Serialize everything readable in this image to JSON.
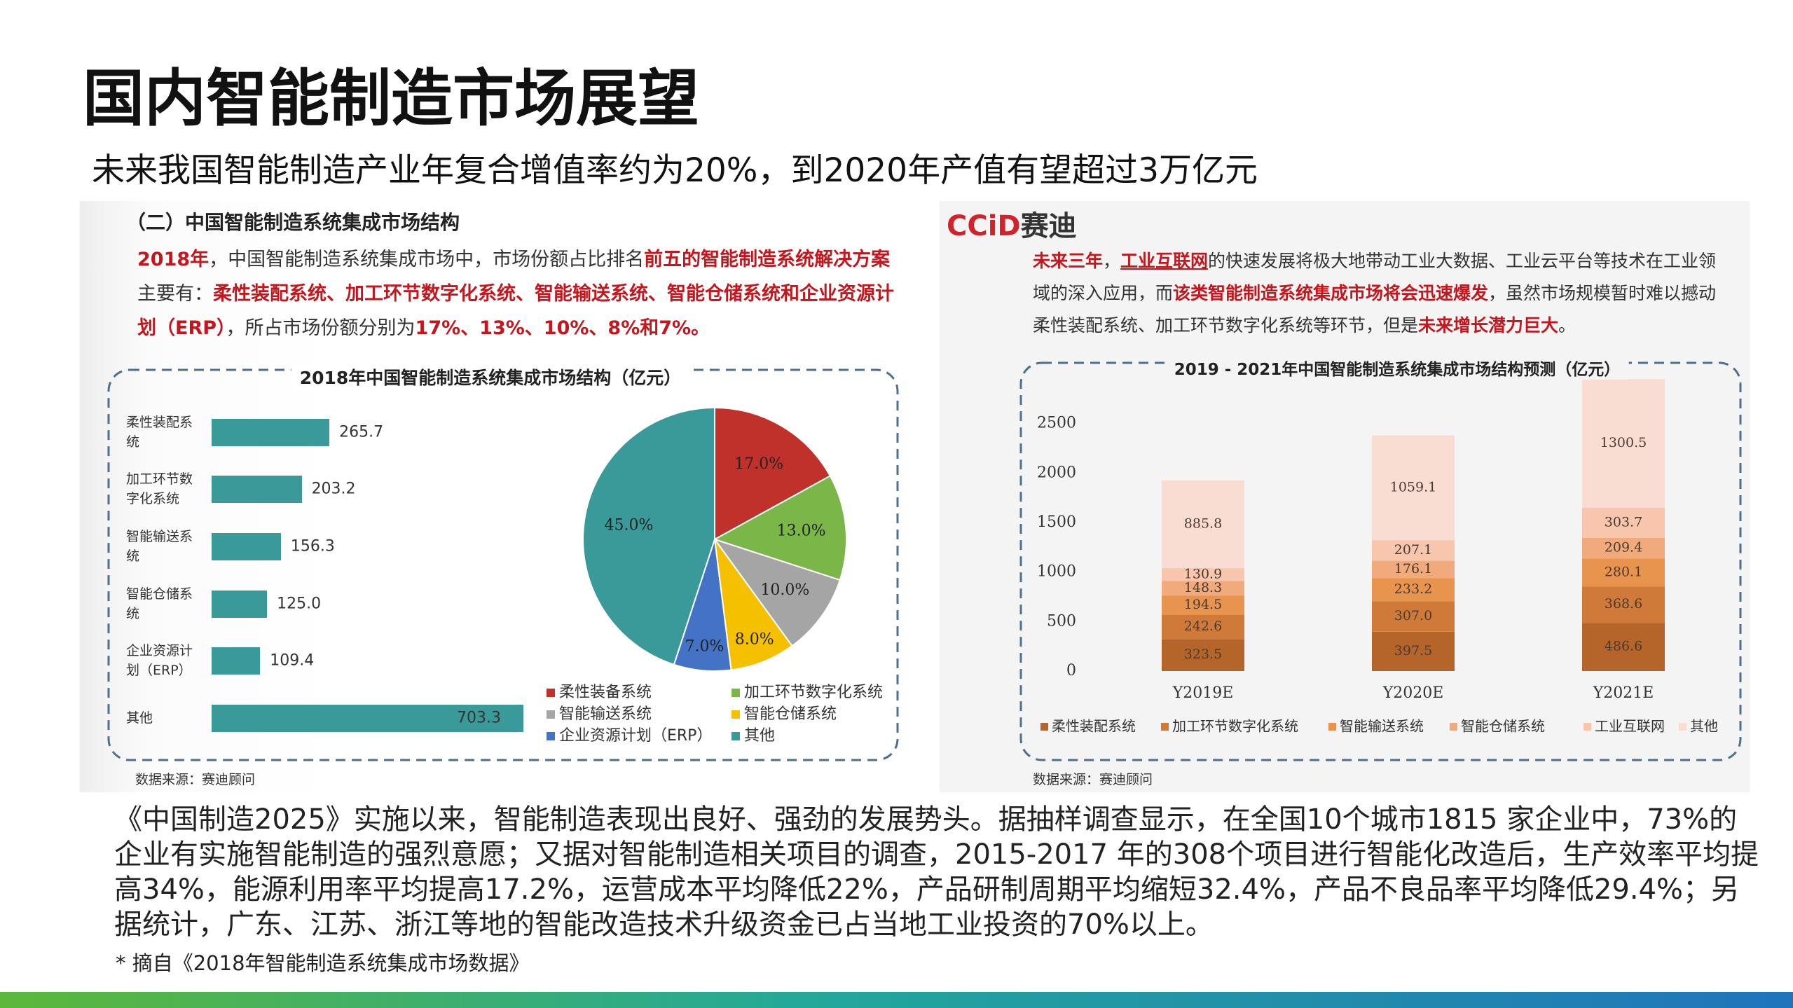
{
  "title": "国内智能制造市场展望",
  "subtitle": "未来我国智能制造产业年复合增值率约为20%，到2020年产值有望超过3万亿元",
  "left_panel": {
    "heading": "（二）中国智能制造系统集成市场结构",
    "paragraph": [
      "2018年",
      "，中国智能制造系统集成市场中，市场份额占比排名",
      "前五的智能制造系统解决方案",
      "主要有：",
      "柔性装配系统、加工环节数字化系统、智能输送系统、智能仓储系统和企业资源计划（ERP）",
      "，所占市场份额分别为",
      "17%、13%、10%、8%和7%。"
    ],
    "source": "数据来源：赛迪顾问"
  },
  "right_panel": {
    "logo": {
      "mark": "CCiD",
      "name": "赛迪"
    },
    "paragraph": [
      "未来三年",
      "，",
      "工业互联网",
      "的快速发展将极大地带动工业大数据、工业云平台等技术在工业领域的深入应用，而",
      "该类智能制造系统集成市场将会迅速爆发",
      "，虽然市场规模暂时难以撼动柔性装配系统、加工环节数字化系统等环节，但是",
      "未来增长潜力巨大",
      "。"
    ],
    "source": "数据来源：赛迪顾问"
  },
  "body": "《中国制造2025》实施以来，智能制造表现出良好、强劲的发展势头。据抽样调查显示，在全国10个城市1815 家企业中，73%的企业有实施智能制造的强烈意愿；又据对智能制造相关项目的调查，2015-2017 年的308个项目进行智能化改造后，生产效率平均提高34%，能源利用率平均提高17.2%，运营成本平均降低22%，产品研制周期平均缩短32.4%，产品不良品率平均降低29.4%；另据统计，广东、江苏、浙江等地的智能改造技术升级资金已占当地工业投资的70%以上。",
  "footnote": "* 摘自《2018年智能制造系统集成市场数据》",
  "chart_data": [
    {
      "type": "hbar",
      "title": "2018年中国智能制造系统集成市场结构（亿元）",
      "categories": [
        "柔性装配系统",
        "加工环节数字化系统",
        "智能输送系统",
        "智能仓储系统",
        "企业资源计划（ERP）",
        "其他"
      ],
      "values": [
        265.7,
        203.2,
        156.3,
        125.0,
        109.4,
        703.3
      ],
      "value_labels": [
        "265.7",
        "203.2",
        "156.3",
        "125.0",
        "109.4",
        "703.3"
      ],
      "color": "#3a9a9a"
    },
    {
      "type": "pie",
      "categories": [
        "柔性装备系统",
        "加工环节数字化系统",
        "智能输送系统",
        "智能仓储系统",
        "企业资源计划（ERP）",
        "其他"
      ],
      "values": [
        17,
        13,
        10,
        8,
        7,
        45
      ],
      "value_labels": [
        "17.0%",
        "13.0%",
        "10.0%",
        "8.0%",
        "7.0%",
        "45.0%"
      ],
      "colors": [
        "#c0312b",
        "#7ab648",
        "#a5a5a5",
        "#f5c000",
        "#4472c4",
        "#3a9a9a"
      ]
    },
    {
      "type": "stacked_bar",
      "title": "2019 - 2021年中国智能制造系统集成市场结构预测（亿元）",
      "categories": [
        "Y2019E",
        "Y2020E",
        "Y2021E"
      ],
      "ylim": [
        0,
        3000
      ],
      "yticks": [
        0,
        500,
        1000,
        1500,
        2000,
        2500
      ],
      "series": [
        {
          "name": "柔性装配系统",
          "color": "#b5652a",
          "values": [
            323.5,
            397.5,
            486.6
          ],
          "value_labels": [
            "323.5",
            "397.5",
            "486.6"
          ]
        },
        {
          "name": "加工环节数字化系统",
          "color": "#d07a3a",
          "values": [
            242.6,
            307.0,
            368.6
          ],
          "value_labels": [
            "242.6",
            "307.0",
            "368.6"
          ]
        },
        {
          "name": "智能输送系统",
          "color": "#e8944f",
          "values": [
            194.5,
            233.2,
            280.1
          ],
          "value_labels": [
            "194.5",
            "233.2",
            "280.1"
          ]
        },
        {
          "name": "智能仓储系统",
          "color": "#f0aa7c",
          "values": [
            148.3,
            176.1,
            209.4
          ],
          "value_labels": [
            "148.3",
            "176.1",
            "209.4"
          ]
        },
        {
          "name": "工业互联网",
          "color": "#f7c6ad",
          "values": [
            130.9,
            207.1,
            303.7
          ],
          "value_labels": [
            "130.9",
            "207.1",
            "303.7"
          ]
        },
        {
          "name": "其他",
          "color": "#f9dcd2",
          "values": [
            885.8,
            1059.1,
            1300.5
          ],
          "value_labels": [
            "885.8",
            "1059.1",
            "1300.5"
          ]
        }
      ]
    }
  ]
}
